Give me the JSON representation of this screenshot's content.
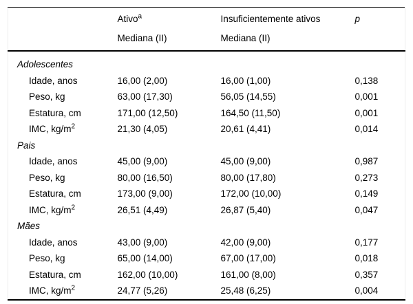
{
  "colors": {
    "background": "#ffffff",
    "text": "#000000",
    "rule": "#000000",
    "side_border": "#ececec"
  },
  "table": {
    "header": {
      "col_ativo": {
        "title": "Ativo",
        "footnote_marker": "a",
        "subtitle": "Mediana (II)"
      },
      "col_insuf": {
        "title": "Insuficientemente ativos",
        "subtitle": "Mediana (II)"
      },
      "col_p": {
        "title": "p"
      }
    },
    "sections": [
      {
        "name": "Adolescentes",
        "rows": [
          {
            "label": "Idade, anos",
            "ativo": "16,00 (2,00)",
            "insuficientemente_ativos": "16,00 (1,00)",
            "p": "0,138"
          },
          {
            "label": "Peso, kg",
            "ativo": "63,00 (17,30)",
            "insuficientemente_ativos": "56,05 (14,55)",
            "p": "0,001"
          },
          {
            "label": "Estatura, cm",
            "ativo": "171,00 (12,50)",
            "insuficientemente_ativos": "164,50 (11,50)",
            "p": "0,001"
          },
          {
            "label": "IMC, kg/m",
            "label_sup": "2",
            "ativo": "21,30 (4,05)",
            "insuficientemente_ativos": "20,61 (4,41)",
            "p": "0,014"
          }
        ]
      },
      {
        "name": "Pais",
        "rows": [
          {
            "label": "Idade, anos",
            "ativo": "45,00 (9,00)",
            "insuficientemente_ativos": "45,00 (9,00)",
            "p": "0,987"
          },
          {
            "label": "Peso, kg",
            "ativo": "80,00 (16,50)",
            "insuficientemente_ativos": "80,00 (17,80)",
            "p": "0,273"
          },
          {
            "label": "Estatura, cm",
            "ativo": "173,00 (9,00)",
            "insuficientemente_ativos": "172,00 (10,00)",
            "p": "0,149"
          },
          {
            "label": "IMC, kg/m",
            "label_sup": "2",
            "ativo": "26,51 (4,49)",
            "insuficientemente_ativos": "26,87 (5,40)",
            "p": "0,047"
          }
        ]
      },
      {
        "name": "Mães",
        "rows": [
          {
            "label": "Idade, anos",
            "ativo": "43,00 (9,00)",
            "insuficientemente_ativos": "42,00 (9,00)",
            "p": "0,177"
          },
          {
            "label": "Peso, kg",
            "ativo": "65,00 (14,00)",
            "insuficientemente_ativos": "67,00 (17,00)",
            "p": "0,018"
          },
          {
            "label": "Estatura, cm",
            "ativo": "162,00 (10,00)",
            "insuficientemente_ativos": "161,00 (8,00)",
            "p": "0,357"
          },
          {
            "label": "IMC, kg/m",
            "label_sup": "2",
            "ativo": "24,77 (5,26)",
            "insuficientemente_ativos": "25,48 (6,25)",
            "p": "0,004"
          }
        ]
      }
    ]
  }
}
